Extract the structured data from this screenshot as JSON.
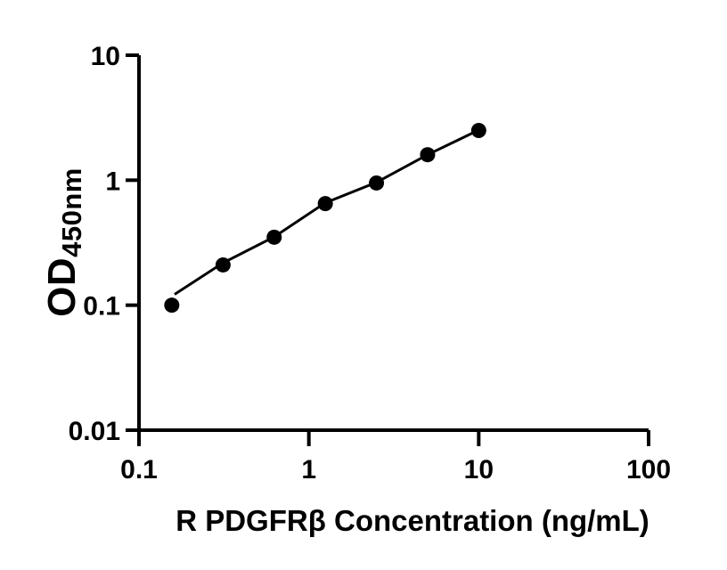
{
  "figure": {
    "background": "#ffffff"
  },
  "chart_data": {
    "type": "scatter",
    "title": "",
    "xlabel": "R PDGFRβ Concentration (ng/mL)",
    "ylabel_main": "OD",
    "ylabel_sub": "450nm",
    "x_scale": "log",
    "y_scale": "log",
    "xlim": [
      0.1,
      100
    ],
    "ylim": [
      0.01,
      10
    ],
    "grid": false,
    "legend": false,
    "x_ticks": [
      {
        "value": 0.1,
        "label": "0.1"
      },
      {
        "value": 1,
        "label": "1"
      },
      {
        "value": 10,
        "label": "10"
      },
      {
        "value": 100,
        "label": "100"
      }
    ],
    "y_ticks": [
      {
        "value": 10,
        "label": "10"
      },
      {
        "value": 1,
        "label": "1"
      },
      {
        "value": 0.1,
        "label": "0.1"
      },
      {
        "value": 0.01,
        "label": "0.01"
      }
    ],
    "series": [
      {
        "x": [
          0.156,
          0.3125,
          0.625,
          1.25,
          2.5,
          5,
          10
        ],
        "y": [
          0.1,
          0.21,
          0.35,
          0.65,
          0.95,
          1.6,
          2.5
        ]
      }
    ],
    "fit_line": [
      [
        0.162,
        0.122
      ],
      [
        0.3125,
        0.218
      ],
      [
        0.625,
        0.352
      ],
      [
        1.25,
        0.66
      ],
      [
        2.5,
        0.96
      ],
      [
        5,
        1.6
      ],
      [
        10,
        2.52
      ]
    ],
    "marker_color": "#000000",
    "marker_radius": 8.5,
    "line_color": "#000000",
    "line_width": 3,
    "axis_color": "#000000",
    "axis_width": 4
  }
}
